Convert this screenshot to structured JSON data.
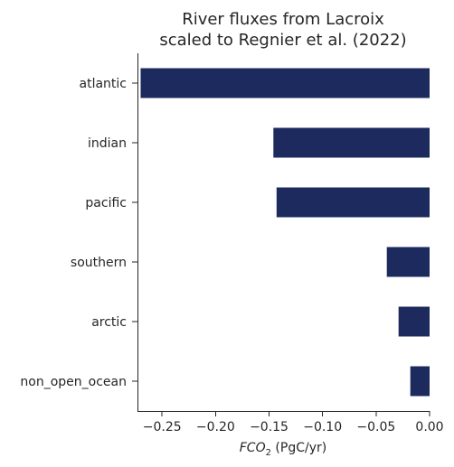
{
  "chart_data": {
    "type": "bar",
    "orientation": "horizontal",
    "title_line1": "River fluxes from Lacroix",
    "title_line2": "scaled to Regnier et al. (2022)",
    "xlabel_main": "FCO",
    "xlabel_sub": "2",
    "xlabel_units": " (PgC/yr)",
    "ylabel": "",
    "categories": [
      "atlantic",
      "indian",
      "pacific",
      "southern",
      "arctic",
      "non_open_ocean"
    ],
    "values": [
      -0.27,
      -0.146,
      -0.143,
      -0.04,
      -0.029,
      -0.018
    ],
    "xlim": [
      -0.273,
      0.0
    ],
    "xticks": [
      -0.25,
      -0.2,
      -0.15,
      -0.1,
      -0.05,
      0.0
    ],
    "xtick_labels": [
      "−0.25",
      "−0.20",
      "−0.15",
      "−0.10",
      "−0.05",
      "0.00"
    ],
    "bar_color": "#1c2a5e",
    "grid": false,
    "legend": "none"
  }
}
